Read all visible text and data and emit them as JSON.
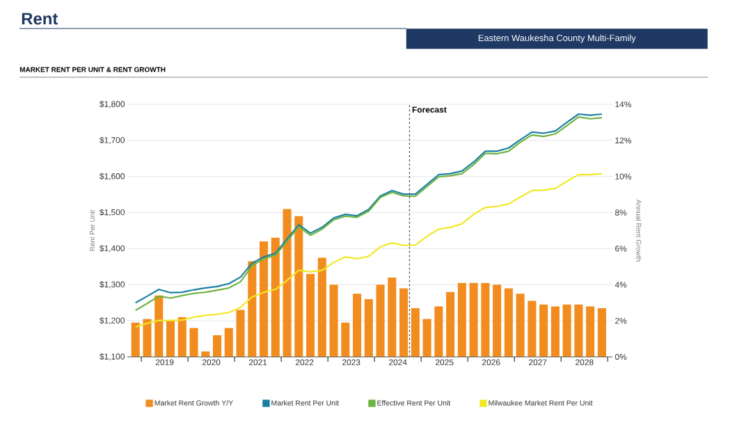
{
  "chart_data": {
    "type": "line",
    "title": "Rent",
    "subtitle": "Eastern Waukesha County Multi-Family",
    "annotations": [
      "MARKET RENT PER UNIT & RENT GROWTH"
    ],
    "ylabel": "Rent Per Unit",
    "y2label": "Annual Rent Growth",
    "x": [
      2018.875,
      2019.125,
      2019.375,
      2019.625,
      2019.875,
      2020.125,
      2020.375,
      2020.625,
      2020.875,
      2021.125,
      2021.375,
      2021.625,
      2021.875,
      2022.125,
      2022.375,
      2022.625,
      2022.875,
      2023.125,
      2023.375,
      2023.625,
      2023.875,
      2024.125,
      2024.375,
      2024.625,
      2024.875,
      2025.125,
      2025.375,
      2025.625,
      2025.875,
      2026.125,
      2026.375,
      2026.625,
      2026.875,
      2027.125,
      2027.375,
      2027.625,
      2027.875,
      2028.125,
      2028.375,
      2028.625,
      2028.875
    ],
    "xlim": [
      2018.7,
      2029.1
    ],
    "xticks": [
      {
        "value": 2019,
        "label": null
      },
      {
        "value": 2019.5,
        "label": "2019"
      },
      {
        "value": 2020,
        "label": null
      },
      {
        "value": 2020.5,
        "label": "2020"
      },
      {
        "value": 2021,
        "label": null
      },
      {
        "value": 2021.5,
        "label": "2021"
      },
      {
        "value": 2022,
        "label": null
      },
      {
        "value": 2022.5,
        "label": "2022"
      },
      {
        "value": 2023,
        "label": null
      },
      {
        "value": 2023.5,
        "label": "2023"
      },
      {
        "value": 2024,
        "label": null
      },
      {
        "value": 2024.5,
        "label": "2024"
      },
      {
        "value": 2025,
        "label": null
      },
      {
        "value": 2025.5,
        "label": "2025"
      },
      {
        "value": 2026,
        "label": null
      },
      {
        "value": 2026.5,
        "label": "2026"
      },
      {
        "value": 2027,
        "label": null
      },
      {
        "value": 2027.5,
        "label": "2027"
      },
      {
        "value": 2028,
        "label": null
      },
      {
        "value": 2028.5,
        "label": "2028"
      },
      {
        "value": 2029,
        "label": null
      }
    ],
    "ylim": [
      1100,
      1800
    ],
    "yticks": [
      {
        "value": 1100,
        "label": "$1,100"
      },
      {
        "value": 1200,
        "label": "$1,200"
      },
      {
        "value": 1300,
        "label": "$1,300"
      },
      {
        "value": 1400,
        "label": "$1,400"
      },
      {
        "value": 1500,
        "label": "$1,500"
      },
      {
        "value": 1600,
        "label": "$1,600"
      },
      {
        "value": 1700,
        "label": "$1,700"
      },
      {
        "value": 1800,
        "label": "$1,800"
      }
    ],
    "y2lim": [
      0,
      14
    ],
    "y2ticks": [
      {
        "value": 0,
        "label": "0%"
      },
      {
        "value": 2,
        "label": "2%"
      },
      {
        "value": 4,
        "label": "4%"
      },
      {
        "value": 6,
        "label": "6%"
      },
      {
        "value": 8,
        "label": "8%"
      },
      {
        "value": 10,
        "label": "10%"
      },
      {
        "value": 12,
        "label": "12%"
      },
      {
        "value": 14,
        "label": "14%"
      }
    ],
    "grid": "y",
    "legend": "bottom",
    "ref_lines": [
      {
        "axis": "x",
        "value": 2024.75,
        "label": "Forecast",
        "color": "#555555",
        "line_style": "dashed"
      }
    ],
    "series": [
      {
        "name": "Market Rent Growth Y/Y",
        "type": "bar",
        "axis": "y2",
        "color": "#f28c1e",
        "values": [
          1.9,
          2.1,
          3.4,
          2.0,
          2.2,
          1.6,
          0.3,
          1.2,
          1.6,
          2.6,
          5.3,
          6.4,
          6.6,
          8.2,
          7.8,
          4.6,
          5.5,
          4.0,
          1.9,
          3.5,
          3.2,
          4.0,
          4.4,
          3.8,
          2.7,
          2.1,
          2.8,
          3.6,
          4.1,
          4.1,
          4.1,
          4.0,
          3.8,
          3.5,
          3.1,
          2.9,
          2.8,
          2.9,
          2.9,
          2.8,
          2.7
        ]
      },
      {
        "name": "Market Rent Per Unit",
        "color": "#1a7fa0",
        "values": [
          1250,
          1268,
          1287,
          1278,
          1279,
          1286,
          1291,
          1295,
          1303,
          1321,
          1360,
          1377,
          1387,
          1427,
          1466,
          1443,
          1459,
          1485,
          1495,
          1491,
          1509,
          1546,
          1561,
          1551,
          1551,
          1578,
          1605,
          1608,
          1615,
          1640,
          1670,
          1670,
          1679,
          1702,
          1723,
          1720,
          1726,
          1750,
          1773,
          1770,
          1773
        ]
      },
      {
        "name": "Effective Rent Per Unit",
        "color": "#6db33f",
        "values": [
          1229,
          1248,
          1268,
          1263,
          1270,
          1276,
          1279,
          1285,
          1291,
          1308,
          1353,
          1372,
          1382,
          1421,
          1461,
          1437,
          1454,
          1480,
          1490,
          1487,
          1504,
          1542,
          1556,
          1546,
          1545,
          1572,
          1599,
          1602,
          1608,
          1633,
          1664,
          1663,
          1670,
          1695,
          1715,
          1711,
          1718,
          1741,
          1765,
          1760,
          1763
        ]
      },
      {
        "name": "Milwaukee Market Rent Per Unit",
        "color": "#f2e826",
        "values": [
          1183,
          1193,
          1201,
          1201,
          1202,
          1210,
          1215,
          1218,
          1223,
          1237,
          1266,
          1279,
          1287,
          1312,
          1340,
          1336,
          1340,
          1362,
          1377,
          1372,
          1379,
          1405,
          1416,
          1409,
          1410,
          1434,
          1454,
          1459,
          1469,
          1495,
          1514,
          1517,
          1524,
          1543,
          1561,
          1562,
          1567,
          1587,
          1605,
          1605,
          1608
        ]
      }
    ]
  }
}
